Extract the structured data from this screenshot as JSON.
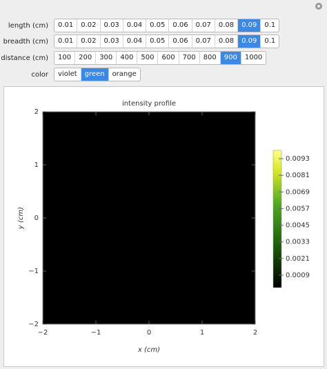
{
  "controls": [
    {
      "label": "length (cm)",
      "options": [
        "0.01",
        "0.02",
        "0.03",
        "0.04",
        "0.05",
        "0.06",
        "0.07",
        "0.08",
        "0.09",
        "0.1"
      ],
      "selected": 8
    },
    {
      "label": "breadth (cm)",
      "options": [
        "0.01",
        "0.02",
        "0.03",
        "0.04",
        "0.05",
        "0.06",
        "0.07",
        "0.08",
        "0.09",
        "0.1"
      ],
      "selected": 8
    },
    {
      "label": "distance (cm)",
      "options": [
        "100",
        "200",
        "300",
        "400",
        "500",
        "600",
        "700",
        "800",
        "900",
        "1000"
      ],
      "selected": 8
    },
    {
      "label": "color",
      "options": [
        "violet",
        "green",
        "orange"
      ],
      "selected": 1
    }
  ],
  "plot": {
    "title": "intensity profile",
    "x_label": "x (cm)",
    "y_label": "y (cm)",
    "xlim": [
      -2,
      2
    ],
    "ylim": [
      -2,
      2
    ],
    "xticks": [
      {
        "value": -2,
        "label": "−2"
      },
      {
        "value": -1,
        "label": "−1"
      },
      0,
      1,
      2
    ],
    "yticks": [
      {
        "value": -2,
        "label": "−2"
      },
      {
        "value": -1,
        "label": "−1"
      },
      0,
      1,
      2
    ],
    "colorbar": {
      "lim": [
        0,
        0.0099
      ],
      "ticks": [
        0.0009,
        0.0021,
        0.0033,
        0.0045,
        0.0057,
        0.0069,
        0.0081,
        0.0093
      ]
    }
  }
}
